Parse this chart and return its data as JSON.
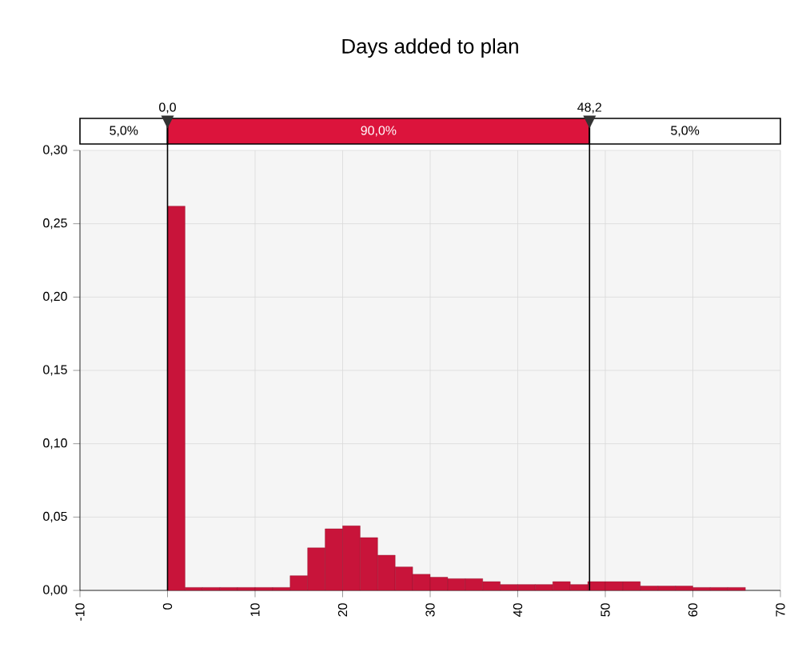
{
  "chart_data": {
    "type": "histogram",
    "title": "Days added to plan",
    "bins": [
      0,
      2,
      4,
      6,
      8,
      10,
      12,
      14,
      16,
      18,
      20,
      22,
      24,
      26,
      28,
      30,
      32,
      34,
      36,
      38,
      40,
      42,
      44,
      46,
      48,
      50,
      52,
      54,
      56,
      58,
      60,
      62,
      64,
      66
    ],
    "values": [
      0.262,
      0.002,
      0.002,
      0.002,
      0.002,
      0.002,
      0.002,
      0.01,
      0.029,
      0.042,
      0.044,
      0.036,
      0.024,
      0.016,
      0.011,
      0.009,
      0.008,
      0.008,
      0.006,
      0.004,
      0.004,
      0.004,
      0.006,
      0.004,
      0.006,
      0.006,
      0.006,
      0.003,
      0.003,
      0.003,
      0.002,
      0.002,
      0.002
    ],
    "color": "#c8143a",
    "xlim": [
      -10,
      70
    ],
    "xticks": [
      -10,
      0,
      10,
      20,
      30,
      40,
      50,
      60,
      70
    ],
    "ylim": [
      0,
      0.3
    ],
    "yticks": [
      {
        "value": 0,
        "label": "0,00"
      },
      {
        "value": 0.05,
        "label": "0,05"
      },
      {
        "value": 0.1,
        "label": "0,10"
      },
      {
        "value": 0.15,
        "label": "0,15"
      },
      {
        "value": 0.2,
        "label": "0,20"
      },
      {
        "value": 0.25,
        "label": "0,25"
      },
      {
        "value": 0.3,
        "label": "0,30"
      }
    ],
    "grid": true,
    "ref_lines": [
      {
        "axis": "x",
        "value": 0,
        "label": "0,0",
        "color": "#000000"
      },
      {
        "axis": "x",
        "value": 48.2,
        "label": "48,2",
        "color": "#000000"
      }
    ],
    "annotations": [
      "5,0%",
      "90,0%",
      "5,0%"
    ]
  }
}
